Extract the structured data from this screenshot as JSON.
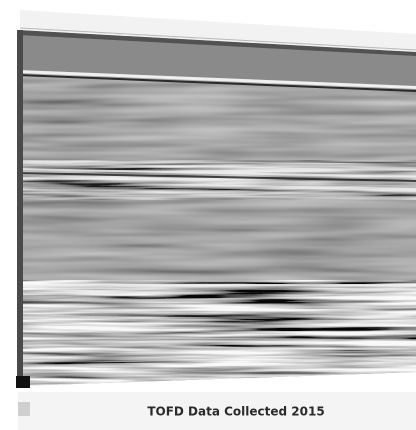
{
  "caption": "TOFD Data Collected 2015"
}
